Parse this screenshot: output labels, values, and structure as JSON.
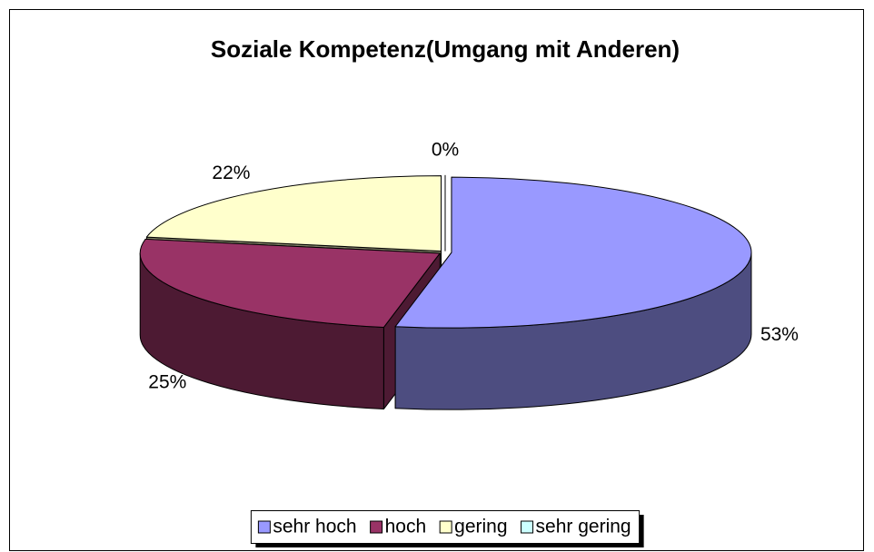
{
  "chart_data": {
    "type": "pie3d",
    "title": "Soziale Kompetenz(Umgang mit Anderen)",
    "categories": [
      "sehr hoch",
      "hoch",
      "gering",
      "sehr gering"
    ],
    "values": [
      53,
      25,
      22,
      0
    ],
    "value_labels": [
      "53%",
      "25%",
      "22%",
      "0%"
    ],
    "colors": [
      "#9999ff",
      "#993366",
      "#ffffcc",
      "#ccffff"
    ],
    "legend": "bottom"
  }
}
